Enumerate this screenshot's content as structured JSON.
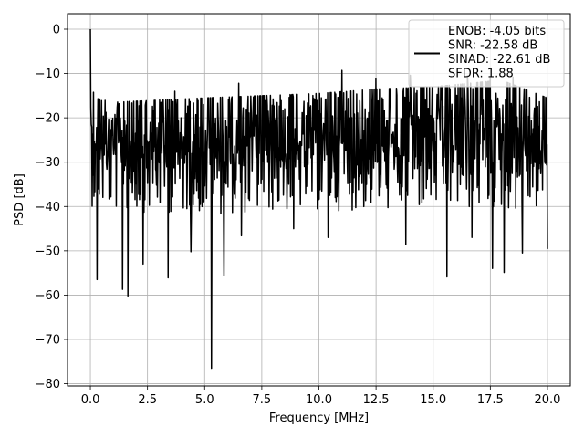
{
  "chart_data": {
    "type": "line",
    "xlabel": "Frequency [MHz]",
    "ylabel": "PSD [dB]",
    "xlim": [
      -1.0,
      21.0
    ],
    "ylim": [
      -80.5,
      3.5
    ],
    "xticks": [
      0.0,
      2.5,
      5.0,
      7.5,
      10.0,
      12.5,
      15.0,
      17.5,
      20.0
    ],
    "xtick_labels": [
      "0.0",
      "2.5",
      "5.0",
      "7.5",
      "10.0",
      "12.5",
      "15.0",
      "17.5",
      "20.0"
    ],
    "yticks": [
      0,
      -10,
      -20,
      -30,
      -40,
      -50,
      -60,
      -70,
      -80
    ],
    "ytick_labels": [
      "0",
      "−10",
      "−20",
      "−30",
      "−40",
      "−50",
      "−60",
      "−70",
      "−80"
    ],
    "grid": true,
    "legend_position": "top-right",
    "line_color": "#000000",
    "grid_color": "#b0b0b0",
    "series": [
      {
        "name": "ENOB: -4.05 bits\nSNR: -22.58 dB\nSINAD: -22.61 dB\nSFDR: 1.88",
        "x_start": 0.0,
        "x_end": 20.0,
        "points": 1024,
        "envelope_upper": [
          [
            0.0,
            0.0
          ],
          [
            0.05,
            -12.5
          ],
          [
            0.2,
            -15.5
          ],
          [
            1.0,
            -16.5
          ],
          [
            5.0,
            -15.5
          ],
          [
            10.0,
            -14.5
          ],
          [
            12.5,
            -13.5
          ],
          [
            15.0,
            -13.0
          ],
          [
            18.0,
            -11.5
          ],
          [
            20.0,
            -15.5
          ]
        ],
        "envelope_lower": [
          [
            0.05,
            -40.0
          ],
          [
            1.0,
            -41.0
          ],
          [
            5.0,
            -42.0
          ],
          [
            10.0,
            -41.0
          ],
          [
            15.0,
            -41.0
          ],
          [
            20.0,
            -41.0
          ]
        ],
        "dips": [
          [
            0.3,
            -56.5
          ],
          [
            1.4,
            -58.7
          ],
          [
            1.65,
            -60.2
          ],
          [
            2.3,
            -53.0
          ],
          [
            3.4,
            -56.1
          ],
          [
            4.4,
            -50.2
          ],
          [
            5.3,
            -76.5
          ],
          [
            5.85,
            -55.6
          ],
          [
            6.6,
            -46.6
          ],
          [
            8.9,
            -45.0
          ],
          [
            10.4,
            -47.0
          ],
          [
            12.5,
            -48.0
          ],
          [
            13.8,
            -48.6
          ],
          [
            15.6,
            -55.9
          ],
          [
            16.7,
            -47.0
          ],
          [
            17.6,
            -54.0
          ],
          [
            18.1,
            -54.9
          ],
          [
            18.9,
            -50.5
          ],
          [
            20.0,
            -49.6
          ]
        ],
        "peaks": [
          [
            3.7,
            -14.0
          ],
          [
            6.5,
            -12.2
          ],
          [
            11.0,
            -9.3
          ],
          [
            12.5,
            -11.2
          ],
          [
            14.0,
            -10.4
          ],
          [
            16.5,
            -10.5
          ],
          [
            17.5,
            -11.0
          ],
          [
            18.5,
            -10.8
          ]
        ]
      }
    ]
  }
}
